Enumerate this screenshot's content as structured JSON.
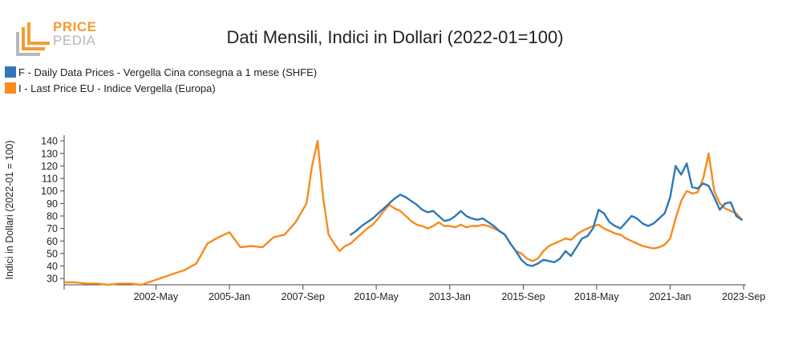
{
  "logo": {
    "top": "PRICE",
    "bottom": "PEDIA"
  },
  "colors": {
    "series_f": "#2e78b5",
    "series_i": "#f68b1f",
    "logo_orange": "#f39c34",
    "logo_gray": "#b8b8b8"
  },
  "chart_data": {
    "type": "line",
    "title": "Dati Mensili, Indici in Dollari (2022-01=100)",
    "xlabel": "",
    "ylabel": "Indici in Dollari (2022-01 = 100)",
    "xlim": [
      1999.0,
      2023.75
    ],
    "ylim": [
      25,
      142
    ],
    "yticks": [
      30,
      40,
      50,
      60,
      70,
      80,
      90,
      100,
      110,
      120,
      130,
      140
    ],
    "xticks": [
      {
        "label": "2002-May",
        "x": 2002.33
      },
      {
        "label": "2005-Jan",
        "x": 2005.0
      },
      {
        "label": "2007-Sep",
        "x": 2007.67
      },
      {
        "label": "2010-May",
        "x": 2010.33
      },
      {
        "label": "2013-Jan",
        "x": 2013.0
      },
      {
        "label": "2015-Sep",
        "x": 2015.67
      },
      {
        "label": "2018-May",
        "x": 2018.33
      },
      {
        "label": "2021-Jan",
        "x": 2021.0
      },
      {
        "label": "2023-Sep",
        "x": 2023.67
      }
    ],
    "legend_position": "top-left",
    "grid": false,
    "series": [
      {
        "name": "F - Daily Data Prices - Vergella Cina consegna a 1 mese (SHFE)",
        "color": "#2e78b5",
        "x": [
          2009.4,
          2009.6,
          2009.8,
          2010.0,
          2010.2,
          2010.4,
          2010.6,
          2010.8,
          2011.0,
          2011.2,
          2011.4,
          2011.6,
          2011.8,
          2012.0,
          2012.2,
          2012.4,
          2012.6,
          2012.8,
          2013.0,
          2013.2,
          2013.4,
          2013.6,
          2013.8,
          2014.0,
          2014.2,
          2014.4,
          2014.6,
          2014.8,
          2015.0,
          2015.2,
          2015.4,
          2015.6,
          2015.8,
          2016.0,
          2016.2,
          2016.4,
          2016.6,
          2016.8,
          2017.0,
          2017.2,
          2017.4,
          2017.6,
          2017.8,
          2018.0,
          2018.2,
          2018.4,
          2018.6,
          2018.8,
          2019.0,
          2019.2,
          2019.4,
          2019.6,
          2019.8,
          2020.0,
          2020.2,
          2020.4,
          2020.6,
          2020.8,
          2021.0,
          2021.2,
          2021.4,
          2021.6,
          2021.8,
          2022.0,
          2022.2,
          2022.4,
          2022.6,
          2022.8,
          2023.0,
          2023.2,
          2023.4,
          2023.6
        ],
        "y": [
          65,
          68,
          72,
          75,
          78,
          82,
          86,
          90,
          94,
          97,
          95,
          92,
          89,
          85,
          83,
          84,
          80,
          76,
          77,
          80,
          84,
          80,
          78,
          77,
          78,
          75,
          72,
          68,
          65,
          58,
          52,
          45,
          41,
          40,
          42,
          45,
          44,
          43,
          46,
          52,
          48,
          55,
          62,
          64,
          70,
          85,
          82,
          75,
          72,
          70,
          75,
          80,
          78,
          74,
          72,
          74,
          78,
          82,
          95,
          120,
          113,
          122,
          103,
          102,
          106,
          104,
          95,
          85,
          90,
          91,
          80,
          77
        ]
      },
      {
        "name": "I - Last Price EU - Indice Vergella (Europa)",
        "color": "#f68b1f",
        "x": [
          1999.0,
          1999.4,
          1999.8,
          2000.2,
          2000.6,
          2001.0,
          2001.4,
          2001.8,
          2002.2,
          2002.6,
          2003.0,
          2003.4,
          2003.8,
          2004.2,
          2004.6,
          2005.0,
          2005.4,
          2005.8,
          2006.2,
          2006.6,
          2007.0,
          2007.4,
          2007.8,
          2008.0,
          2008.2,
          2008.4,
          2008.6,
          2008.8,
          2009.0,
          2009.2,
          2009.4,
          2009.6,
          2009.8,
          2010.0,
          2010.2,
          2010.4,
          2010.6,
          2010.8,
          2011.0,
          2011.2,
          2011.4,
          2011.6,
          2011.8,
          2012.0,
          2012.2,
          2012.4,
          2012.6,
          2012.8,
          2013.0,
          2013.2,
          2013.4,
          2013.6,
          2013.8,
          2014.0,
          2014.2,
          2014.4,
          2014.6,
          2014.8,
          2015.0,
          2015.2,
          2015.4,
          2015.6,
          2015.8,
          2016.0,
          2016.2,
          2016.4,
          2016.6,
          2016.8,
          2017.0,
          2017.2,
          2017.4,
          2017.6,
          2017.8,
          2018.0,
          2018.2,
          2018.4,
          2018.6,
          2018.8,
          2019.0,
          2019.2,
          2019.4,
          2019.6,
          2019.8,
          2020.0,
          2020.2,
          2020.4,
          2020.6,
          2020.8,
          2021.0,
          2021.2,
          2021.4,
          2021.6,
          2021.8,
          2022.0,
          2022.2,
          2022.4,
          2022.6,
          2022.8,
          2023.0,
          2023.2,
          2023.4,
          2023.6
        ],
        "y": [
          27,
          27,
          26,
          26,
          25,
          26,
          26,
          25,
          28,
          31,
          34,
          37,
          42,
          58,
          63,
          67,
          55,
          56,
          55,
          63,
          65,
          75,
          90,
          120,
          140,
          95,
          65,
          58,
          52,
          56,
          58,
          62,
          66,
          70,
          73,
          78,
          84,
          89,
          86,
          84,
          80,
          76,
          73,
          72,
          70,
          72,
          75,
          72,
          72,
          71,
          73,
          71,
          72,
          72,
          73,
          72,
          70,
          68,
          65,
          58,
          52,
          50,
          46,
          44,
          46,
          52,
          56,
          58,
          60,
          62,
          61,
          65,
          68,
          70,
          72,
          73,
          70,
          68,
          66,
          65,
          62,
          60,
          58,
          56,
          55,
          54,
          55,
          57,
          62,
          78,
          92,
          100,
          98,
          99,
          110,
          130,
          100,
          90,
          86,
          84,
          82,
          77
        ]
      }
    ]
  }
}
